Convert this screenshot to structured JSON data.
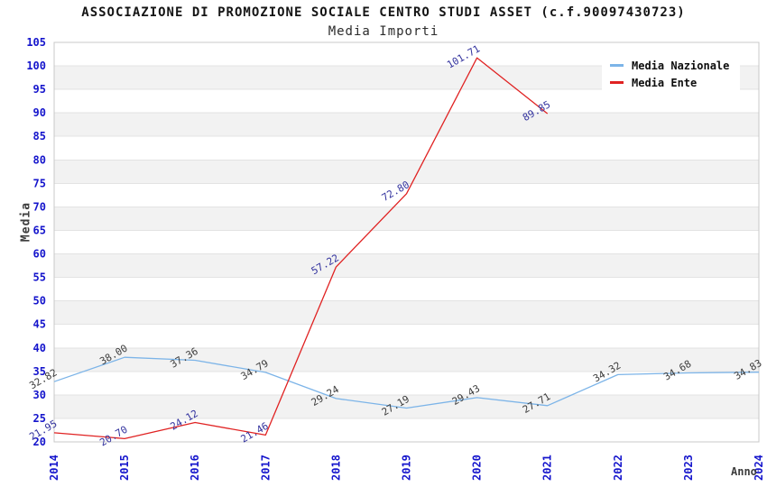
{
  "chart_data": {
    "type": "line",
    "title": "ASSOCIAZIONE DI PROMOZIONE SOCIALE CENTRO STUDI ASSET (c.f.90097430723)",
    "subtitle": "Media Importi",
    "xlabel": "Anno",
    "ylabel": "Media",
    "categories": [
      "2014",
      "2015",
      "2016",
      "2017",
      "2018",
      "2019",
      "2020",
      "2021",
      "2022",
      "2023",
      "2024"
    ],
    "ylim": [
      20,
      105
    ],
    "ytick_step": 5,
    "grid": true,
    "background_bands": true,
    "legend_position": "top-right",
    "series": [
      {
        "name": "Media Nazionale",
        "color": "#7CB4E8",
        "label_color": "#3c3c3c",
        "values": [
          32.82,
          38.0,
          37.36,
          34.79,
          29.24,
          27.19,
          29.43,
          27.71,
          34.32,
          34.68,
          34.83
        ]
      },
      {
        "name": "Media Ente",
        "color": "#E02222",
        "label_color": "#32329E",
        "values": [
          21.95,
          20.7,
          24.12,
          21.46,
          57.22,
          72.8,
          101.71,
          89.85,
          null,
          null,
          null
        ]
      }
    ],
    "colors": {
      "tick_label": "#1515CC",
      "band": "#F2F2F2",
      "grid": "#E3E3E3",
      "border": "#C8C8C8",
      "axis_title": "#3d3d3d"
    }
  }
}
